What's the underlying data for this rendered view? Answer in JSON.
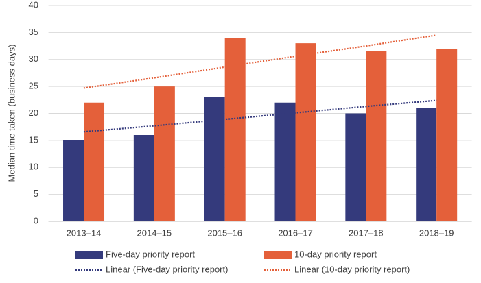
{
  "chart_data": {
    "type": "bar",
    "ylabel": "Median time taken (business days)",
    "categories": [
      "2013–14",
      "2014–15",
      "2015–16",
      "2016–17",
      "2017–18",
      "2018–19"
    ],
    "series": [
      {
        "name": "Five-day priority report",
        "color": "#343a7c",
        "values": [
          15,
          16,
          23,
          22,
          20,
          21
        ]
      },
      {
        "name": "10-day priority report",
        "color": "#e4603a",
        "values": [
          22,
          25,
          34,
          33,
          31.5,
          32
        ]
      },
      {
        "name": "Linear (Five-day priority report)",
        "type": "line",
        "dotted": true,
        "color": "#343a7c",
        "values": [
          16.6,
          17.7,
          18.9,
          20.1,
          21.3,
          22.4
        ]
      },
      {
        "name": "Linear (10-day priority report)",
        "type": "line",
        "dotted": true,
        "color": "#e4603a",
        "values": [
          24.7,
          26.6,
          28.6,
          30.6,
          32.5,
          34.5
        ]
      }
    ],
    "ylim": [
      0,
      40
    ],
    "yticks": [
      0,
      5,
      10,
      15,
      20,
      25,
      30,
      35,
      40
    ],
    "grid": true,
    "legend": "bottom"
  }
}
